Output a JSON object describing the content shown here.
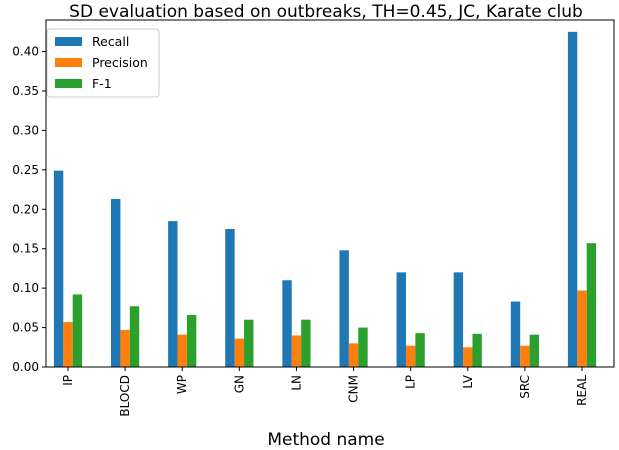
{
  "chart_data": {
    "type": "bar",
    "title": "SD evaluation based on outbreaks, TH=0.45, JC, Karate club",
    "xlabel": "Method name",
    "ylabel": "",
    "ylim": [
      0,
      0.44
    ],
    "yticks": [
      0.0,
      0.05,
      0.1,
      0.15,
      0.2,
      0.25,
      0.3,
      0.35,
      0.4
    ],
    "ytick_labels": [
      "0.00",
      "0.05",
      "0.10",
      "0.15",
      "0.20",
      "0.25",
      "0.30",
      "0.35",
      "0.40"
    ],
    "grid": false,
    "legend_position": "top-left",
    "categories": [
      "IP",
      "BLOCD",
      "WP",
      "GN",
      "LN",
      "CNM",
      "LP",
      "LV",
      "SRC",
      "REAL"
    ],
    "series": [
      {
        "name": "Recall",
        "color": "#1f77b4",
        "values": [
          0.249,
          0.213,
          0.185,
          0.175,
          0.11,
          0.148,
          0.12,
          0.12,
          0.083,
          0.425
        ]
      },
      {
        "name": "Precision",
        "color": "#ff7f0e",
        "values": [
          0.057,
          0.047,
          0.041,
          0.036,
          0.04,
          0.03,
          0.027,
          0.025,
          0.027,
          0.097
        ]
      },
      {
        "name": "F-1",
        "color": "#2ca02c",
        "values": [
          0.092,
          0.077,
          0.066,
          0.06,
          0.06,
          0.05,
          0.043,
          0.042,
          0.041,
          0.157
        ]
      }
    ]
  }
}
